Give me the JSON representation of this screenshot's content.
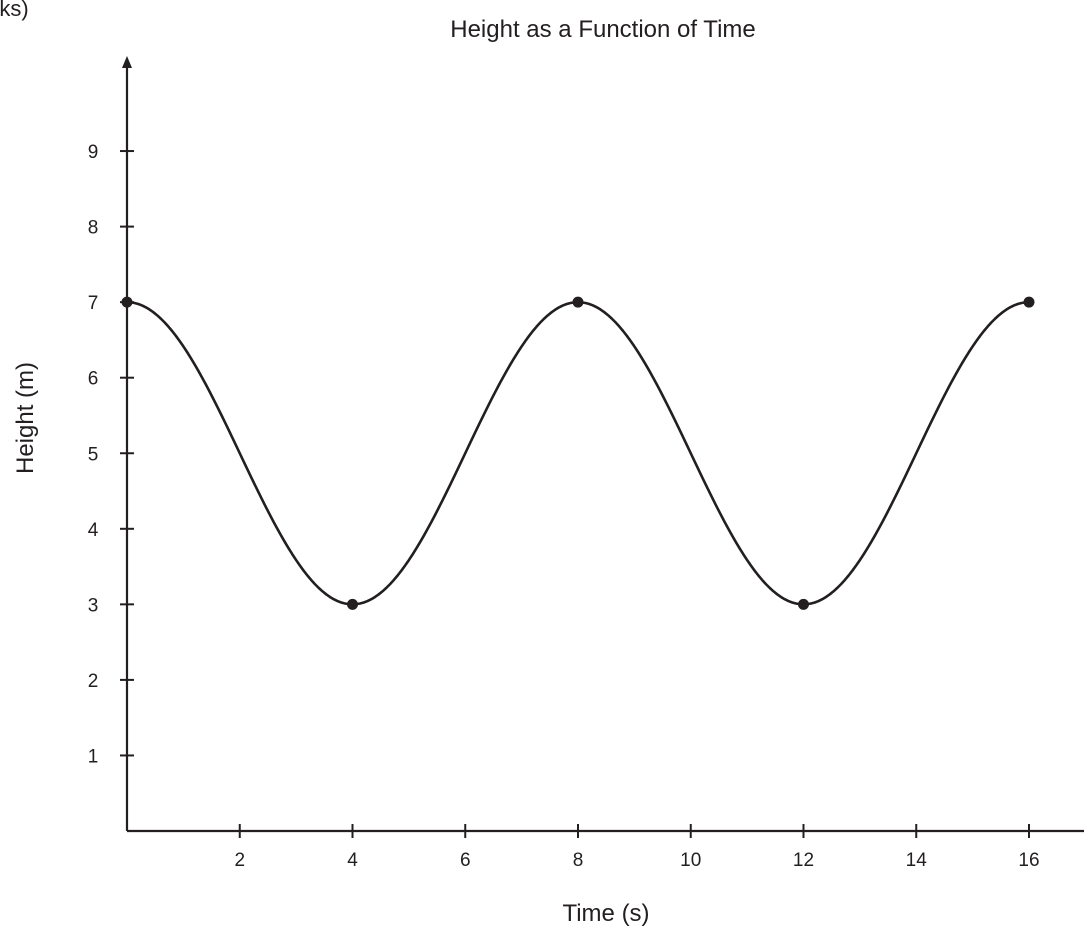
{
  "fragment_text": "rks)",
  "chart_data": {
    "type": "line",
    "title": "Height as a Function of Time",
    "xlabel": "Time (s)",
    "ylabel": "Height (m)",
    "xlim": [
      0,
      16.9
    ],
    "ylim": [
      0,
      10
    ],
    "xticks": [
      2,
      4,
      6,
      8,
      10,
      12,
      14,
      16
    ],
    "yticks": [
      1,
      2,
      3,
      4,
      5,
      6,
      7,
      8,
      9
    ],
    "xtick_labels": [
      "2",
      "4",
      "6",
      "8",
      "10",
      "12",
      "14",
      "16"
    ],
    "ytick_labels": [
      "1",
      "2",
      "3",
      "4",
      "5",
      "6",
      "7",
      "8",
      "9"
    ],
    "curve": "sinusoid",
    "points": [
      {
        "x": 0,
        "y": 7
      },
      {
        "x": 4,
        "y": 3
      },
      {
        "x": 8,
        "y": 7
      },
      {
        "x": 12,
        "y": 3
      },
      {
        "x": 16,
        "y": 7
      }
    ],
    "grid": false,
    "color": "#231f20"
  }
}
